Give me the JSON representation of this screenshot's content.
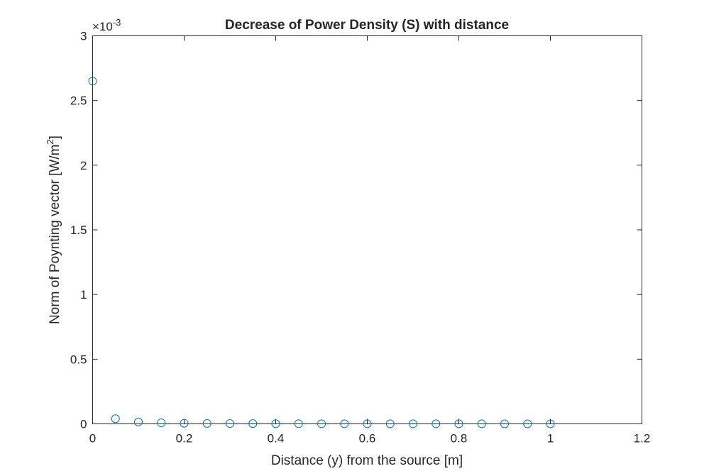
{
  "chart_data": {
    "type": "scatter",
    "title": "Decrease of Power Density (S) with distance",
    "xlabel": "Distance (y) from the source [m]",
    "ylabel": {
      "text": "Norm of Poynting vector [W/m",
      "sup": "2",
      "suffix": "]"
    },
    "xlim": [
      0,
      1.2
    ],
    "ylim": [
      0,
      0.003
    ],
    "x_ticks": [
      0,
      0.2,
      0.4,
      0.6,
      0.8,
      1,
      1.2
    ],
    "x_tick_labels": [
      "0",
      "0.2",
      "0.4",
      "0.6",
      "0.8",
      "1",
      "1.2"
    ],
    "y_ticks": [
      0,
      0.0005,
      0.001,
      0.0015,
      0.002,
      0.0025,
      0.003
    ],
    "y_tick_labels": [
      "0",
      "0.5",
      "1",
      "1.5",
      "2",
      "2.5",
      "3"
    ],
    "y_exponent": {
      "base": "×10",
      "power": "-3"
    },
    "grid": false,
    "box": true,
    "series": [
      {
        "marker": "circle",
        "color": "#0072BD",
        "x": [
          0,
          0.05,
          0.1,
          0.15,
          0.2,
          0.25,
          0.3,
          0.35,
          0.4,
          0.45,
          0.5,
          0.55,
          0.6,
          0.65,
          0.7,
          0.75,
          0.8,
          0.85,
          0.9,
          0.95,
          1
        ],
        "y": [
          0.00265,
          4e-05,
          1.5e-05,
          8e-06,
          5e-06,
          3.5e-06,
          2.5e-06,
          2e-06,
          1.5e-06,
          1.2e-06,
          1e-06,
          8e-07,
          7e-07,
          6e-07,
          5e-07,
          4.5e-07,
          4e-07,
          3.5e-07,
          3e-07,
          2.8e-07,
          2.5e-07
        ]
      }
    ]
  }
}
